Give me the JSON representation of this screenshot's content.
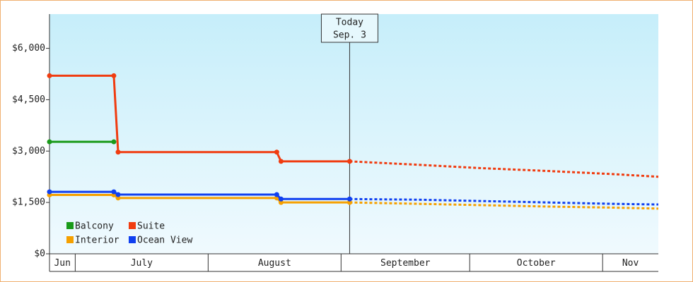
{
  "chart_data": {
    "type": "line",
    "x": [
      24,
      39,
      40,
      77,
      78,
      94,
      110,
      125,
      140,
      155,
      166
    ],
    "xlim": [
      24,
      166
    ],
    "xticks": [
      {
        "value": 0,
        "label": "Jun"
      },
      {
        "value": 30,
        "label": "July"
      },
      {
        "value": 61,
        "label": "August"
      },
      {
        "value": 92,
        "label": "September"
      },
      {
        "value": 122,
        "label": "October"
      },
      {
        "value": 153,
        "label": "Nov"
      }
    ],
    "ylim": [
      0,
      7000
    ],
    "yticks": [
      {
        "value": 0,
        "label": "$0"
      },
      {
        "value": 1500,
        "label": "$1,500"
      },
      {
        "value": 3000,
        "label": "$3,000"
      },
      {
        "value": 4500,
        "label": "$4,500"
      },
      {
        "value": 6000,
        "label": "$6,000"
      }
    ],
    "annotation": {
      "x": 94,
      "lines": [
        "Today",
        "Sep. 3"
      ]
    },
    "legend": "lower left",
    "series": [
      {
        "name": "Balcony",
        "color": "#1a9a1a",
        "values": [
          3270,
          3270,
          null,
          null,
          null,
          null,
          null,
          null,
          null,
          null,
          null
        ]
      },
      {
        "name": "Suite",
        "color": "#f03c10",
        "values": [
          5200,
          5200,
          2970,
          2970,
          2700,
          2700,
          2600,
          2500,
          2420,
          2330,
          2250
        ]
      },
      {
        "name": "Interior",
        "color": "#f5a000",
        "values": [
          1720,
          1720,
          1630,
          1630,
          1500,
          1500,
          1460,
          1420,
          1380,
          1350,
          1320
        ]
      },
      {
        "name": "Ocean View",
        "color": "#1040f0",
        "values": [
          1810,
          1810,
          1730,
          1730,
          1600,
          1600,
          1580,
          1540,
          1500,
          1460,
          1440
        ]
      }
    ]
  }
}
